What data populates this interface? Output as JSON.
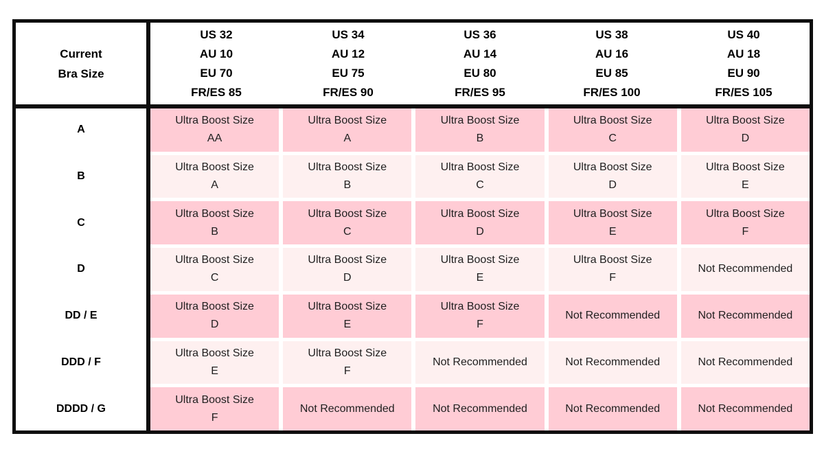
{
  "header": {
    "corner": [
      "Current",
      "Bra Size"
    ],
    "columns": [
      {
        "lines": [
          "US 32",
          "AU 10",
          "EU 70",
          "FR/ES 85"
        ]
      },
      {
        "lines": [
          "US 34",
          "AU 12",
          "EU 75",
          "FR/ES 90"
        ]
      },
      {
        "lines": [
          "US 36",
          "AU 14",
          "EU 80",
          "FR/ES 95"
        ]
      },
      {
        "lines": [
          "US 38",
          "AU 16",
          "EU 85",
          "FR/ES 100"
        ]
      },
      {
        "lines": [
          "US 40",
          "AU 18",
          "EU 90",
          "FR/ES 105"
        ]
      }
    ]
  },
  "rows": [
    {
      "label": "A",
      "tone": "dark",
      "cells": [
        [
          "Ultra Boost Size",
          "AA"
        ],
        [
          "Ultra Boost Size",
          "A"
        ],
        [
          "Ultra Boost Size",
          "B"
        ],
        [
          "Ultra Boost Size",
          "C"
        ],
        [
          "Ultra Boost Size",
          "D"
        ]
      ]
    },
    {
      "label": "B",
      "tone": "light",
      "cells": [
        [
          "Ultra Boost Size",
          "A"
        ],
        [
          "Ultra Boost Size",
          "B"
        ],
        [
          "Ultra Boost Size",
          "C"
        ],
        [
          "Ultra Boost Size",
          "D"
        ],
        [
          "Ultra Boost Size",
          "E"
        ]
      ]
    },
    {
      "label": "C",
      "tone": "dark",
      "cells": [
        [
          "Ultra Boost Size",
          "B"
        ],
        [
          "Ultra Boost Size",
          "C"
        ],
        [
          "Ultra Boost Size",
          "D"
        ],
        [
          "Ultra Boost Size",
          "E"
        ],
        [
          "Ultra Boost Size",
          "F"
        ]
      ]
    },
    {
      "label": "D",
      "tone": "light",
      "cells": [
        [
          "Ultra Boost Size",
          "C"
        ],
        [
          "Ultra Boost Size",
          "D"
        ],
        [
          "Ultra Boost Size",
          "E"
        ],
        [
          "Ultra Boost Size",
          "F"
        ],
        [
          "Not Recommended"
        ]
      ]
    },
    {
      "label": "DD / E",
      "tone": "dark",
      "cells": [
        [
          "Ultra Boost Size",
          "D"
        ],
        [
          "Ultra Boost Size",
          "E"
        ],
        [
          "Ultra Boost Size",
          "F"
        ],
        [
          "Not Recommended"
        ],
        [
          "Not Recommended"
        ]
      ]
    },
    {
      "label": "DDD / F",
      "tone": "light",
      "cells": [
        [
          "Ultra Boost Size",
          "E"
        ],
        [
          "Ultra Boost Size",
          "F"
        ],
        [
          "Not Recommended"
        ],
        [
          "Not Recommended"
        ],
        [
          "Not Recommended"
        ]
      ]
    },
    {
      "label": "DDDD / G",
      "tone": "dark",
      "cells": [
        [
          "Ultra Boost Size",
          "F"
        ],
        [
          "Not Recommended"
        ],
        [
          "Not Recommended"
        ],
        [
          "Not Recommended"
        ],
        [
          "Not Recommended"
        ]
      ]
    }
  ],
  "colors": {
    "row_dark": "#FFCCD5",
    "row_light": "#FEF0F0",
    "border": "#0D0D0D",
    "cell_text": "#1F1F1F",
    "header_text": "#000000",
    "background": "#FFFFFF"
  }
}
